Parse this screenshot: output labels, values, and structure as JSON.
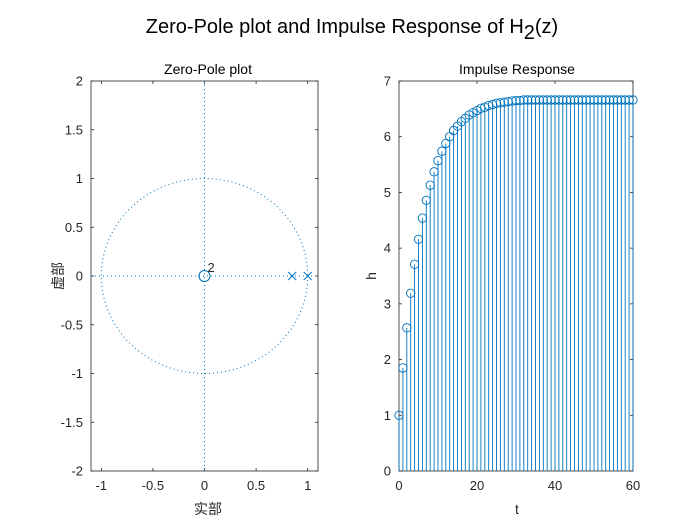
{
  "figure": {
    "title_main": "Zero-Pole plot and Impulse Response of H",
    "title_sub": "2",
    "title_tail": "(z)"
  },
  "chart_data": [
    {
      "type": "scatter",
      "title": "Zero-Pole plot",
      "xlabel": "实部",
      "ylabel": "虚部",
      "xlim": [
        -1.1,
        1.1
      ],
      "ylim": [
        -2,
        2
      ],
      "xticks": [
        -1,
        -0.5,
        0,
        0.5,
        1
      ],
      "xtick_labels": [
        "-1",
        "-0.5",
        "0",
        "0.5",
        "1"
      ],
      "yticks": [
        2,
        1.5,
        1,
        0.5,
        0,
        -0.5,
        -1,
        -1.5,
        -2
      ],
      "ytick_labels": [
        "2",
        "1.5",
        "1",
        "0.5",
        "0",
        "-0.5",
        "-1",
        "-1.5",
        "-2"
      ],
      "zeros": [
        {
          "re": 0,
          "im": 0
        }
      ],
      "zero_multiplicity_label": "2",
      "poles": [
        {
          "re": 0.85,
          "im": 0
        },
        {
          "re": 1.0,
          "im": 0
        }
      ],
      "unit_circle": true,
      "color": "#0072bd"
    },
    {
      "type": "stem",
      "title": "Impulse Response",
      "xlabel": "t",
      "ylabel": "h",
      "xlim": [
        0,
        60
      ],
      "ylim": [
        0,
        7
      ],
      "xticks": [
        0,
        20,
        40,
        60
      ],
      "xtick_labels": [
        "0",
        "20",
        "40",
        "60"
      ],
      "yticks": [
        7,
        6,
        5,
        4,
        3,
        2,
        1,
        0
      ],
      "ytick_labels": [
        "7",
        "6",
        "5",
        "4",
        "3",
        "2",
        "1",
        "0"
      ],
      "x": [
        0,
        1,
        2,
        3,
        4,
        5,
        6,
        7,
        8,
        9,
        10,
        11,
        12,
        13,
        14,
        15,
        16,
        17,
        18,
        19,
        20,
        21,
        22,
        23,
        24,
        25,
        26,
        27,
        28,
        29,
        30,
        31,
        32,
        33,
        34,
        35,
        36,
        37,
        38,
        39,
        40,
        41,
        42,
        43,
        44,
        45,
        46,
        47,
        48,
        49,
        50,
        51,
        52,
        53,
        54,
        55,
        56,
        57,
        58,
        59,
        60
      ],
      "values": [
        1.0,
        1.85,
        2.57,
        3.19,
        3.71,
        4.16,
        4.54,
        4.86,
        5.13,
        5.37,
        5.57,
        5.74,
        5.88,
        6.0,
        6.11,
        6.19,
        6.27,
        6.33,
        6.39,
        6.43,
        6.47,
        6.51,
        6.53,
        6.56,
        6.58,
        6.6,
        6.61,
        6.62,
        6.63,
        6.64,
        6.65,
        6.65,
        6.66,
        6.66,
        6.66,
        6.66,
        6.66,
        6.66,
        6.66,
        6.66,
        6.66,
        6.66,
        6.66,
        6.66,
        6.66,
        6.66,
        6.66,
        6.66,
        6.66,
        6.66,
        6.66,
        6.66,
        6.66,
        6.66,
        6.66,
        6.66,
        6.66,
        6.66,
        6.66,
        6.66,
        6.66
      ],
      "color": "#0072bd"
    }
  ]
}
